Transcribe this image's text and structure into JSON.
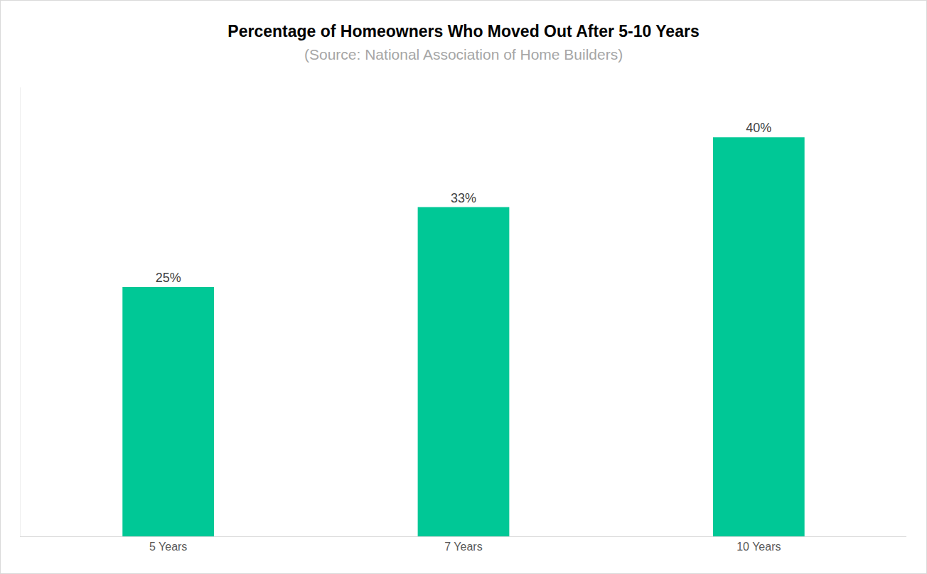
{
  "chart_data": {
    "type": "bar",
    "title": "Percentage of Homeowners Who Moved Out After 5-10 Years",
    "subtitle": "(Source: National Association of Home Builders)",
    "categories": [
      "5 Years",
      "7 Years",
      "10 Years"
    ],
    "values": [
      25,
      33,
      40
    ],
    "value_labels": [
      "25%",
      "33%",
      "40%"
    ],
    "data_labels": true,
    "color": "#00c896",
    "ylim": [
      0,
      45
    ],
    "grid": false,
    "tick_labels": "x"
  }
}
